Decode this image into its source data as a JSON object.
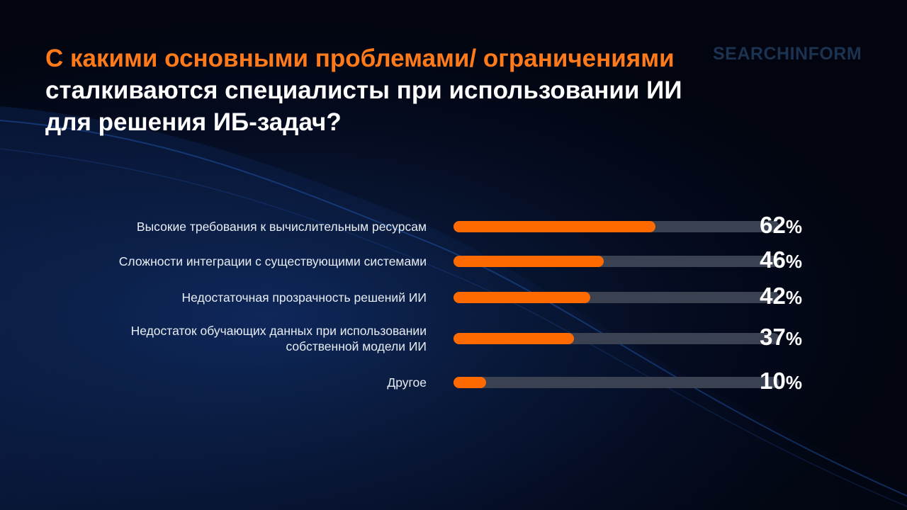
{
  "logo": "SEARCHINFORM",
  "title": {
    "highlight": "С какими основными проблемами/ ограничениями",
    "rest": " сталкиваются специалисты при использовании ИИ для решения ИБ-задач?"
  },
  "colors": {
    "accent": "#ff6a00",
    "track": "#3a4252",
    "title_highlight": "#ff7a1a",
    "background": "#040a1d"
  },
  "chart_data": {
    "type": "bar",
    "orientation": "horizontal",
    "title": "С какими основными проблемами/ ограничениями сталкиваются специалисты при использовании ИИ для решения ИБ-задач?",
    "categories": [
      "Высокие требования к вычислительным ресурсам",
      "Сложности интеграции с существующими системами",
      "Недостаточная прозрачность решений ИИ",
      "Недостаток обучающих данных при использовании собственной модели ИИ",
      "Другое"
    ],
    "values": [
      62,
      46,
      42,
      37,
      10
    ],
    "unit": "%",
    "xlim": [
      0,
      100
    ],
    "grid": false,
    "legend": "none"
  }
}
